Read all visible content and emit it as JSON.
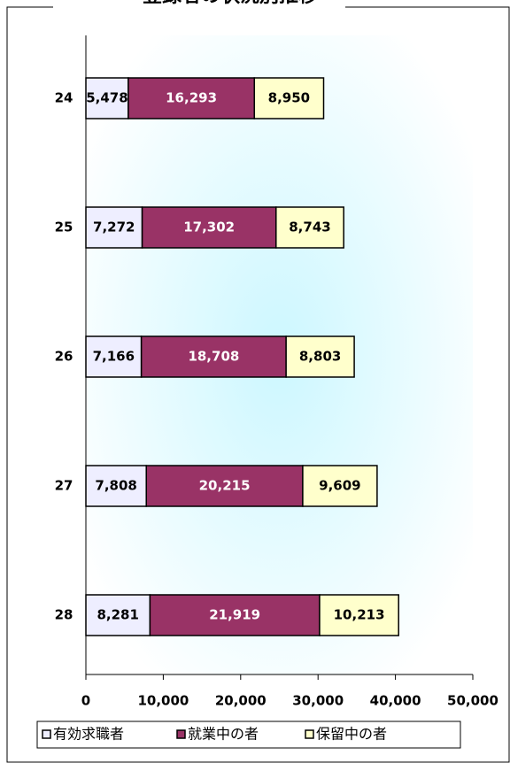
{
  "chart_data": {
    "type": "stacked-bar-horizontal",
    "title": "登録者の状況別推移",
    "categories": [
      "24",
      "25",
      "26",
      "27",
      "28"
    ],
    "series": [
      {
        "name": "有効求職者",
        "color": "#eeeeff",
        "values": [
          5478,
          7272,
          7166,
          7808,
          8281
        ],
        "value_labels": [
          "5,478",
          "7,272",
          "7,166",
          "7,808",
          "8,281"
        ]
      },
      {
        "name": "就業中の者",
        "color": "#993366",
        "values": [
          16293,
          17302,
          18708,
          20215,
          21919
        ],
        "value_labels": [
          "16,293",
          "17,302",
          "18,708",
          "20,215",
          "21,919"
        ]
      },
      {
        "name": "保留中の者",
        "color": "#ffffcc",
        "values": [
          8950,
          8743,
          8803,
          9609,
          10213
        ],
        "value_labels": [
          "8,950",
          "8,743",
          "8,803",
          "9,609",
          "10,213"
        ]
      }
    ],
    "xlim": [
      0,
      50000
    ],
    "xticks": [
      0,
      {
        "value": 10000,
        "label": "10,000"
      },
      {
        "value": 20000,
        "label": "20,000"
      },
      {
        "value": 30000,
        "label": "30,000"
      },
      {
        "value": 40000,
        "label": "40,000"
      },
      {
        "value": 50000,
        "label": "50,000"
      }
    ],
    "legend": "bottom"
  }
}
